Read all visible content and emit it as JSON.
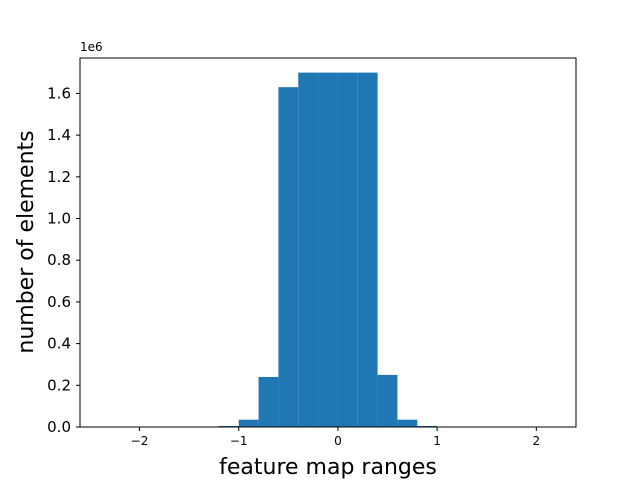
{
  "chart_data": {
    "type": "bar",
    "subtype": "histogram",
    "xlabel": "feature map ranges",
    "ylabel": "number of elements",
    "offset_label": "1e6",
    "xlim": [
      -2.6,
      2.4
    ],
    "ylim": [
      0,
      1.77
    ],
    "x_ticks": [
      -2,
      -1,
      0,
      1,
      2
    ],
    "x_tick_labels": [
      "−2",
      "−1",
      "0",
      "1",
      "2"
    ],
    "y_ticks": [
      0.0,
      0.2,
      0.4,
      0.6,
      0.8,
      1.0,
      1.2,
      1.4,
      1.6
    ],
    "y_tick_labels": [
      "0.0",
      "0.2",
      "0.4",
      "0.6",
      "0.8",
      "1.0",
      "1.2",
      "1.4",
      "1.6"
    ],
    "bins": [
      {
        "x0": -1.2,
        "x1": -1.0,
        "value": 0.005
      },
      {
        "x0": -1.0,
        "x1": -0.8,
        "value": 0.035
      },
      {
        "x0": -0.8,
        "x1": -0.6,
        "value": 0.24
      },
      {
        "x0": -0.6,
        "x1": -0.4,
        "value": 1.63
      },
      {
        "x0": -0.4,
        "x1": -0.2,
        "value": 1.7
      },
      {
        "x0": -0.2,
        "x1": 0.0,
        "value": 1.7
      },
      {
        "x0": 0.0,
        "x1": 0.2,
        "value": 1.7
      },
      {
        "x0": 0.2,
        "x1": 0.4,
        "value": 1.7
      },
      {
        "x0": 0.4,
        "x1": 0.6,
        "value": 0.25
      },
      {
        "x0": 0.6,
        "x1": 0.8,
        "value": 0.035
      },
      {
        "x0": 0.8,
        "x1": 1.0,
        "value": 0.005
      }
    ],
    "bar_color": "#1f77b4",
    "grid": false,
    "legend": "none"
  }
}
